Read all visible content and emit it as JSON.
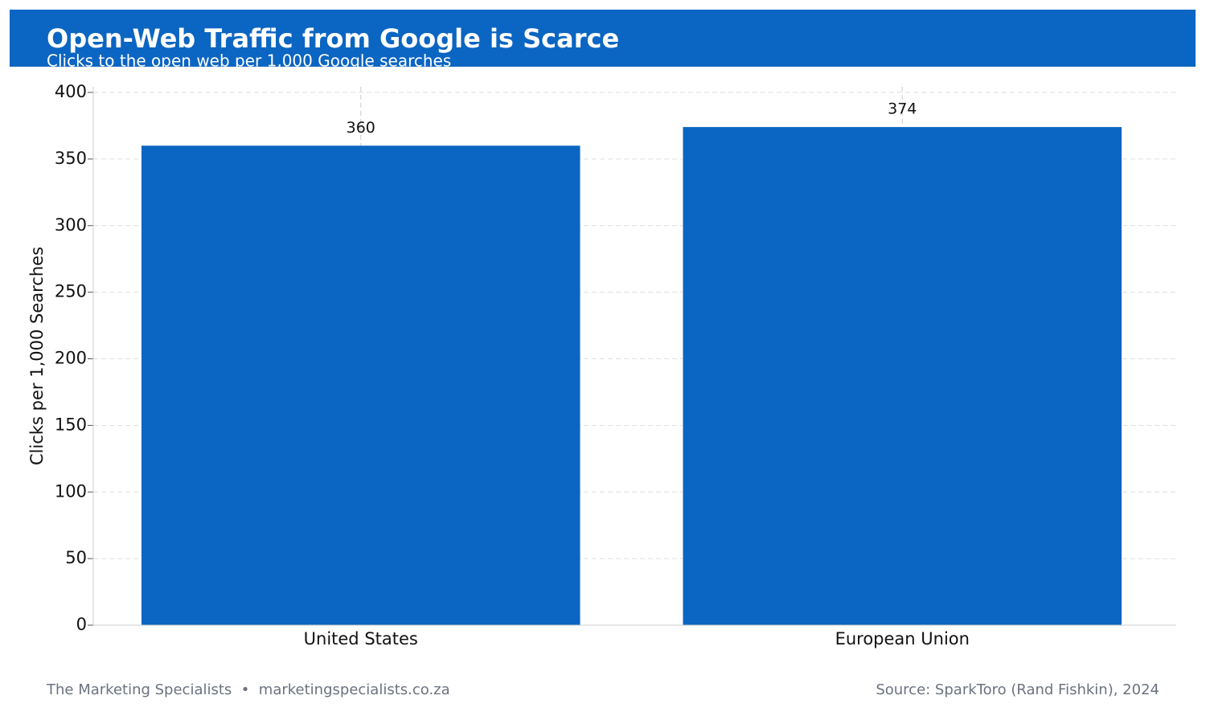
{
  "chart_data": {
    "type": "bar",
    "title": "Open-Web Traffic from Google is Scarce",
    "subtitle": "Clicks to the open web per 1,000 Google searches",
    "ylabel": "Clicks per 1,000 Searches",
    "categories": [
      "United States",
      "European Union"
    ],
    "values": [
      360,
      374
    ],
    "color": "#0b65c2",
    "ylim": [
      0,
      400
    ],
    "yticks": [
      0,
      50,
      100,
      150,
      200,
      250,
      300,
      350,
      400
    ],
    "grid": "both",
    "footer_left": "The Marketing Specialists  •  marketingspecialists.co.za",
    "footer_right": "Source: SparkToro (Rand Fishkin), 2024"
  }
}
